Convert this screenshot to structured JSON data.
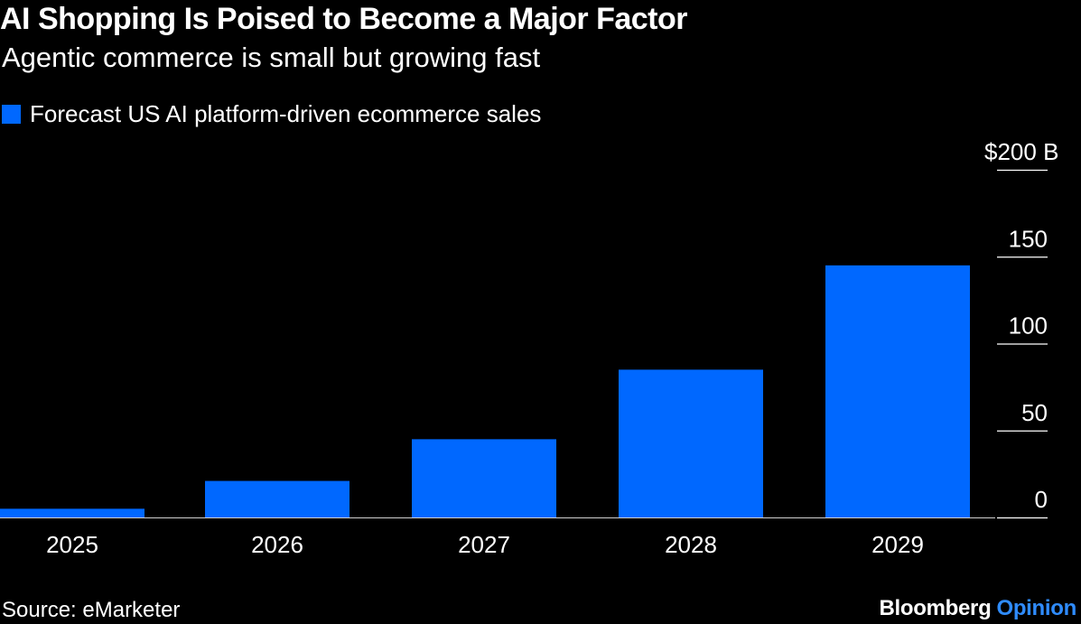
{
  "header": {
    "title": "AI Shopping Is Poised to Become a Major Factor",
    "subtitle": "Agentic commerce is small but growing fast"
  },
  "footer": {
    "source": "Source: eMarketer",
    "brand_primary": "Bloomberg",
    "brand_secondary": "Opinion"
  },
  "colors": {
    "bar": "#0068ff",
    "background": "#000000",
    "text": "#ffffff",
    "brand_accent": "#2f8cff"
  },
  "chart_data": {
    "type": "bar",
    "categories": [
      "2025",
      "2026",
      "2027",
      "2028",
      "2029"
    ],
    "series": [
      {
        "name": "Forecast US AI platform-driven ecommerce sales",
        "values": [
          5,
          21,
          45,
          85,
          145
        ]
      }
    ],
    "ylim": [
      0,
      200
    ],
    "yticks": [
      0,
      50,
      100,
      150,
      200
    ],
    "ytick_labels": [
      "0",
      "50",
      "100",
      "150",
      "$200 B"
    ],
    "yaxis_side": "right",
    "grid": false,
    "legend_position": "top-left"
  }
}
